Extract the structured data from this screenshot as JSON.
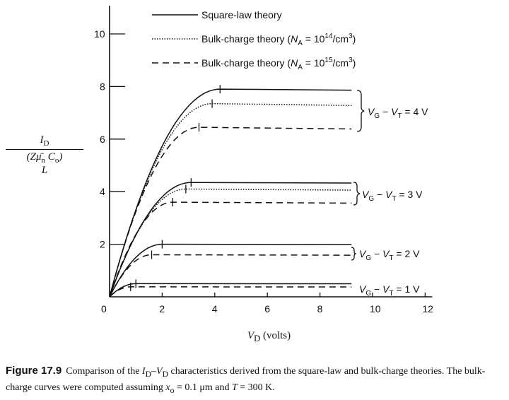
{
  "chart_data": {
    "type": "line",
    "xlabel": "V_D (volts)",
    "ylabel_numerator": "I_D",
    "ylabel_denominator": "(Zμ̄n Co / L)",
    "xlim": [
      0,
      12
    ],
    "ylim": [
      0,
      11
    ],
    "x_ticks": [
      0,
      2,
      4,
      6,
      8,
      10,
      12
    ],
    "y_ticks": [
      2,
      4,
      6,
      8,
      10
    ],
    "grid": false,
    "legend_position": "top",
    "legend": [
      {
        "label": "Square-law theory",
        "style": "solid"
      },
      {
        "label": "Bulk-charge theory (N_A = 10^14/cm^3)",
        "style": "dotted"
      },
      {
        "label": "Bulk-charge theory (N_A = 10^15/cm^3)",
        "style": "dashed"
      }
    ],
    "groups": [
      {
        "label": "V_G − V_T = 4 V",
        "sat": {
          "solid": [
            4.2,
            7.9
          ],
          "dotted": [
            3.9,
            7.35
          ],
          "dashed": [
            3.4,
            6.45
          ]
        }
      },
      {
        "label": "V_G − V_T = 3 V",
        "sat": {
          "solid": [
            3.1,
            4.35
          ],
          "dotted": [
            2.9,
            4.1
          ],
          "dashed": [
            2.4,
            3.6
          ]
        }
      },
      {
        "label": "V_G − V_T = 2 V",
        "sat": {
          "solid": [
            2.0,
            2.0
          ],
          "dashed": [
            1.6,
            1.6
          ]
        }
      },
      {
        "label": "V_G − V_T = 1 V",
        "sat": {
          "solid": [
            1.0,
            0.5
          ],
          "dashed": [
            0.8,
            0.38
          ]
        }
      }
    ],
    "x_end": 9.2
  },
  "legend_text": {
    "solid": "Square-law theory",
    "dotted_prefix": "Bulk-charge theory (",
    "dotted_na": "N",
    "dotted_sub": "A",
    "dotted_eq": " = 10",
    "dotted_exp": "14",
    "dotted_suffix": "/cm",
    "dotted_exp2": "3",
    "dotted_close": ")",
    "dashed_prefix": "Bulk-charge theory (",
    "dashed_na": "N",
    "dashed_sub": "A",
    "dashed_eq": " = 10",
    "dashed_exp": "15",
    "dashed_suffix": "/cm",
    "dashed_exp2": "3",
    "dashed_close": ")"
  },
  "group_labels": [
    {
      "v": "V",
      "gsub": "G",
      "mid": " − ",
      "v2": "V",
      "tsub": "T",
      "val": " = 4 V"
    },
    {
      "v": "V",
      "gsub": "G",
      "mid": " − ",
      "v2": "V",
      "tsub": "T",
      "val": " = 3 V"
    },
    {
      "v": "V",
      "gsub": "G",
      "mid": " − ",
      "v2": "V",
      "tsub": "T",
      "val": " = 2 V"
    },
    {
      "v": "V",
      "gsub": "G",
      "mid": " − ",
      "v2": "V",
      "tsub": "T",
      "val": " = 1 V"
    }
  ],
  "ylabel": {
    "num_main": "I",
    "num_sub": "D",
    "den_main": "Zμ̄",
    "den_sub": "n",
    "den_c": " C",
    "den_csub": "o",
    "den_l": "L"
  },
  "xlabel": {
    "v": "V",
    "sub": "D",
    "unit": " (volts)"
  },
  "caption": {
    "fig": "Figure 17.9",
    "text_a": "Comparison of the ",
    "text_b": " characteristics derived from the square-law and bulk-charge theories. The bulk-charge curves were computed assuming ",
    "text_c": " = 0.1 μm and ",
    "text_d": " = 300 K.",
    "id": "I",
    "id_sub": "D",
    "dash": "–",
    "vd": "V",
    "vd_sub": "D",
    "xo": "x",
    "xo_sub": "o",
    "t": "T"
  }
}
